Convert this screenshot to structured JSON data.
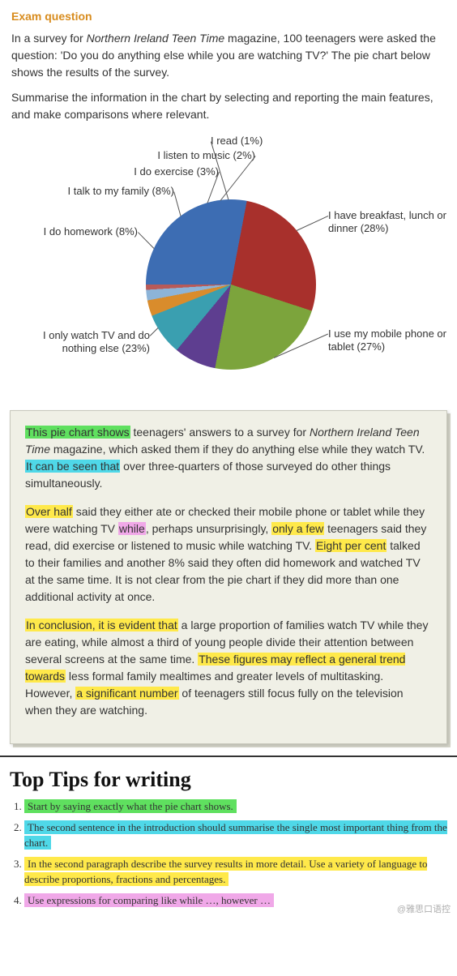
{
  "colors": {
    "exam_title": "#d88c1e",
    "text": "#333333",
    "hl_green": "#5fe05f",
    "hl_cyan": "#4fd8e8",
    "hl_yellow": "#ffe94a",
    "hl_pink": "#f0a8e8"
  },
  "header": {
    "title": "Exam question",
    "para1_pre": "In a survey for ",
    "para1_italic": "Northern Ireland Teen Time",
    "para1_post": " magazine, 100 teenagers were asked the question: 'Do you do anything else while you are watching TV?' The pie chart below shows the results of the survey.",
    "para2": "Summarise the information in the chart by selecting and reporting the main features, and make comparisons where relevant."
  },
  "chart": {
    "type": "pie",
    "background_color": "#ffffff",
    "label_fontsize": 13,
    "slices": [
      {
        "label": "I have breakfast, lunch or dinner (28%)",
        "value": 28,
        "color": "#3d6db3"
      },
      {
        "label": "I use my mobile phone or tablet (27%)",
        "value": 27,
        "color": "#a8302c"
      },
      {
        "label": "I only watch TV and do nothing else (23%)",
        "value": 23,
        "color": "#7ca43c"
      },
      {
        "label": "I do homework (8%)",
        "value": 8,
        "color": "#5e3e90"
      },
      {
        "label": "I talk to my family (8%)",
        "value": 8,
        "color": "#3a9fb0"
      },
      {
        "label": "I do exercise (3%)",
        "value": 3,
        "color": "#d98c2c"
      },
      {
        "label": "I listen to music (2%)",
        "value": 2,
        "color": "#8db4d8"
      },
      {
        "label": "I read (1%)",
        "value": 1,
        "color": "#b85a58"
      }
    ],
    "start_angle_deg": -90
  },
  "essay": {
    "p1": {
      "s1": {
        "text": "This pie chart shows",
        "hl": "hl_green"
      },
      "s2": {
        "text": " teenagers' answers to a survey for "
      },
      "s3": {
        "text": "Northern Ireland Teen Time",
        "italic": true
      },
      "s4": {
        "text": " magazine, which asked them if they do anything else while they watch TV. "
      },
      "s5": {
        "text": "It can be seen that",
        "hl": "hl_cyan"
      },
      "s6": {
        "text": " over three-quarters of those surveyed do other things simultaneously."
      }
    },
    "p2": {
      "s1": {
        "text": "Over half",
        "hl": "hl_yellow"
      },
      "s2": {
        "text": " said they either ate or checked their mobile phone or tablet while they were watching TV "
      },
      "s3": {
        "text": "while",
        "hl": "hl_pink"
      },
      "s4": {
        "text": ", perhaps unsurprisingly, "
      },
      "s5": {
        "text": "only a few",
        "hl": "hl_yellow"
      },
      "s6": {
        "text": " teenagers said they read, did exercise or listened to music while watching TV. "
      },
      "s7": {
        "text": "Eight per cent",
        "hl": "hl_yellow"
      },
      "s8": {
        "text": " talked to their families and another 8% said they often did homework and watched TV at the same time. It is not clear from the pie chart if they did more than one additional activity at once."
      }
    },
    "p3": {
      "s1": {
        "text": "In conclusion, it is evident that",
        "hl": "hl_yellow"
      },
      "s2": {
        "text": " a large proportion of families watch TV while they are eating, while almost a third of young people divide their attention between several screens at the same time. "
      },
      "s3": {
        "text": "These figures may reflect a general trend towards",
        "hl": "hl_yellow"
      },
      "s4": {
        "text": " less formal family mealtimes and greater levels of multitasking. However, "
      },
      "s5": {
        "text": "a significant number",
        "hl": "hl_yellow"
      },
      "s6": {
        "text": " of teenagers still focus fully on the television when they are watching."
      }
    }
  },
  "tips": {
    "title": "Top Tips for writing",
    "items": [
      {
        "text": "Start by saying exactly what the pie chart shows.",
        "hl": "hl_green"
      },
      {
        "text": "The second sentence in the introduction should summarise the single most important thing from the chart.",
        "hl": "hl_cyan"
      },
      {
        "text": "In the second paragraph describe the survey results in more detail. Use a variety of language to describe proportions, fractions and percentages.",
        "hl": "hl_yellow"
      },
      {
        "text": "Use expressions for comparing like while …, however …",
        "hl": "hl_pink"
      }
    ]
  },
  "watermark": "@雅思口语控"
}
